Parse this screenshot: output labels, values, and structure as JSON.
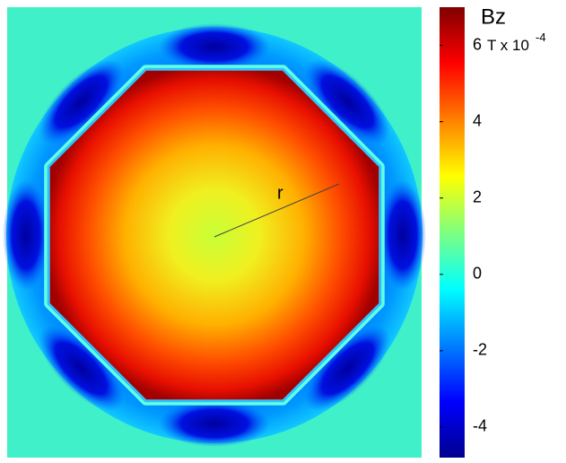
{
  "chart_data": {
    "type": "field",
    "title": "Bz",
    "colorbar_unit": "T x 10",
    "colorbar_unit_exponent": "-4",
    "colormap": "jet",
    "clim": [
      -4.8,
      7
    ],
    "cticks": [
      -4,
      -2,
      0,
      2,
      4,
      6
    ],
    "annotation": "r"
  }
}
